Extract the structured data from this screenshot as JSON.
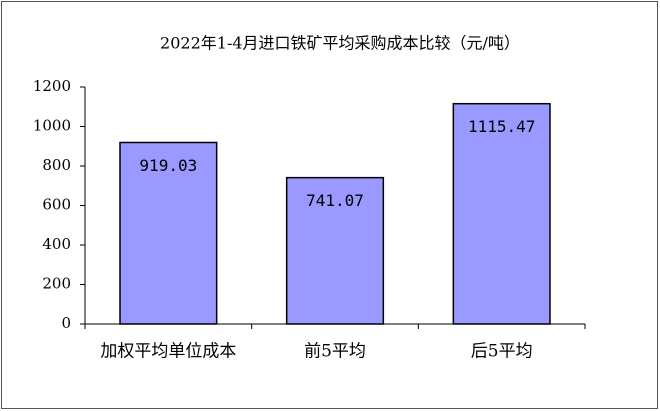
{
  "chart_data": {
    "type": "bar",
    "title": "2022年1-4月进口铁矿平均采购成本比较（元/吨）",
    "categories": [
      "加权平均单位成本",
      "前5平均",
      "后5平均"
    ],
    "values": [
      919.03,
      741.07,
      1115.47
    ],
    "color": "#9999ff",
    "ylim": [
      0,
      1200
    ],
    "yticks": [
      0,
      200,
      400,
      600,
      800,
      1000,
      1200
    ],
    "grid": false
  }
}
